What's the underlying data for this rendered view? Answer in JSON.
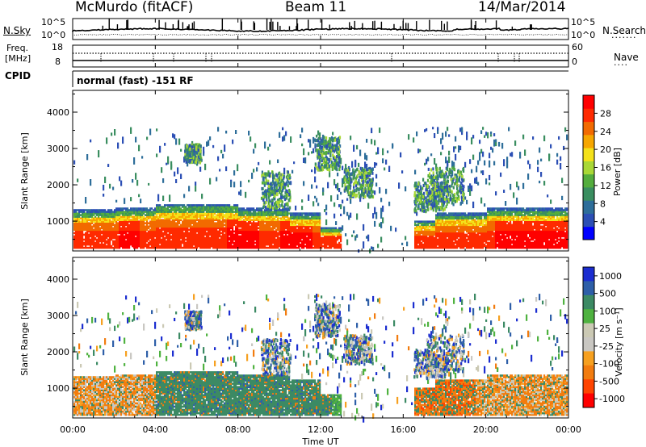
{
  "header": {
    "station": "McMurdo (fitACF)",
    "beam": "Beam 11",
    "date": "14/Mar/2014"
  },
  "noise_panel": {
    "left_label": "N.Sky",
    "left_ticks": [
      "10^5",
      "10^0"
    ],
    "right_ticks": [
      "10^5",
      "10^0"
    ],
    "right_label": "N.Search"
  },
  "freq_panel": {
    "left_label_1": "Freq.",
    "left_label_2": "[MHz]",
    "left_ticks": [
      "18",
      "8"
    ],
    "right_ticks": [
      "60",
      "0"
    ],
    "right_label": "Nave",
    "cpid_label": "CPID",
    "mode_text": "normal (fast) -151 RF"
  },
  "colors": {
    "power": [
      "#0000ff",
      "#2c4fb5",
      "#2e6e9a",
      "#3a8e60",
      "#54ad3d",
      "#a9d836",
      "#f4e11a",
      "#f6a600",
      "#f26a00",
      "#ff2a00",
      "#ff0000"
    ],
    "velocity": [
      "#1b2dd0",
      "#2e5fa8",
      "#3c8a64",
      "#4fb240",
      "#cbc9b4",
      "#c9c7c2",
      "#f6a020",
      "#f27c0f",
      "#ff4400",
      "#ff0000"
    ]
  },
  "chart_data": [
    {
      "type": "heatmap",
      "name": "power",
      "ylabel": "Slant Range [km]",
      "y_ticks": [
        1000,
        2000,
        3000,
        4000
      ],
      "ylim": [
        180,
        4600
      ],
      "x_ticks": [
        "00:00",
        "04:00",
        "08:00",
        "12:00",
        "16:00",
        "20:00",
        "00:00"
      ],
      "colorbar_label": "Power [dB]",
      "colorbar_ticks": [
        4,
        8,
        12,
        16,
        20,
        24,
        28
      ],
      "colorbar_range": [
        0,
        32
      ]
    },
    {
      "type": "heatmap",
      "name": "velocity",
      "ylabel": "Slant Range [km]",
      "y_ticks": [
        1000,
        2000,
        3000,
        4000
      ],
      "ylim": [
        180,
        4600
      ],
      "x_ticks": [
        "00:00",
        "04:00",
        "08:00",
        "12:00",
        "16:00",
        "20:00",
        "00:00"
      ],
      "xlabel": "Time UT",
      "colorbar_label": "Velocity [m s⁻¹]",
      "colorbar_ticks": [
        "1000",
        "500",
        "100",
        "25",
        "-25",
        "-100",
        "-500",
        "-1000"
      ]
    }
  ]
}
